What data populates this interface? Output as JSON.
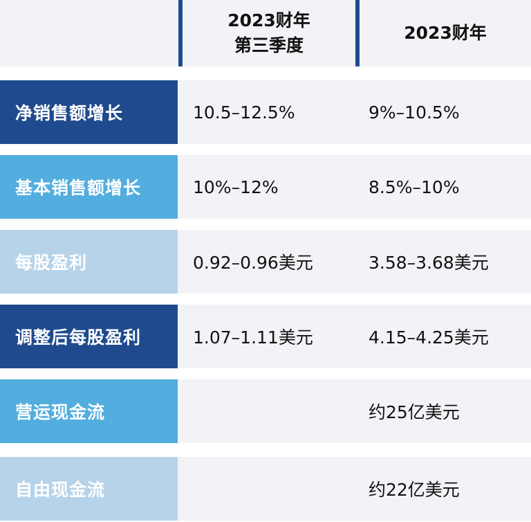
{
  "header": {
    "col1_line1": "2023财年",
    "col1_line2": "第三季度",
    "col2": "2023财年"
  },
  "colors": {
    "dark_blue": "#1f4b8e",
    "mid_blue": "#52aede",
    "light_blue": "#b6d3ea",
    "row_bg": "#f2f3f6"
  },
  "rows": [
    {
      "label": "净销售额增长",
      "q3": "10.5–12.5%",
      "fy": "9%–10.5%",
      "label_style": "dark_blue"
    },
    {
      "label": "基本销售额增长",
      "q3": "10%–12%",
      "fy": "8.5%–10%",
      "label_style": "mid_blue"
    },
    {
      "label": "每股盈利",
      "q3": "0.92–0.96美元",
      "fy": "3.58–3.68美元",
      "label_style": "light_blue"
    },
    {
      "label": "调整后每股盈利",
      "q3": "1.07–1.11美元",
      "fy": "4.15–4.25美元",
      "label_style": "dark_blue"
    },
    {
      "label": "营运现金流",
      "q3": "",
      "fy": "约25亿美元",
      "label_style": "mid_blue"
    },
    {
      "label": "自由现金流",
      "q3": "",
      "fy": "约22亿美元",
      "label_style": "light_blue"
    }
  ]
}
